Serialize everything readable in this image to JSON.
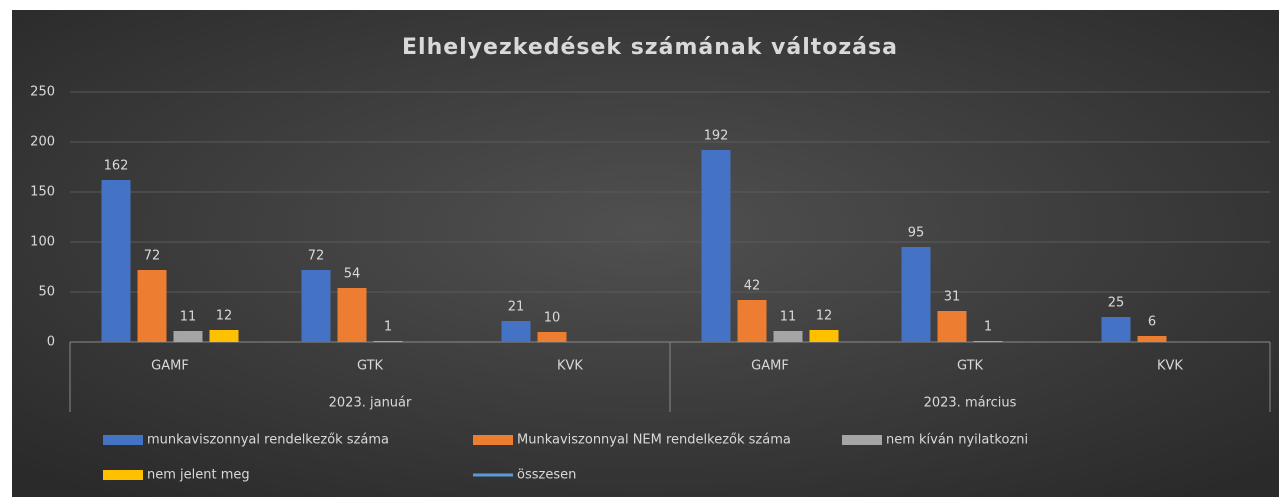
{
  "chart_data": {
    "type": "bar",
    "title": "Elhelyezkedések számának változása",
    "categories": [
      "GAMF",
      "GTK",
      "KVK",
      "GAMF",
      "GTK",
      "KVK"
    ],
    "groups": [
      {
        "label": "2023. január",
        "count": 3
      },
      {
        "label": "2023. március",
        "count": 3
      }
    ],
    "series": [
      {
        "name": "munkaviszonnyal rendelkezők száma",
        "color": "#4472c4",
        "values": [
          162,
          72,
          21,
          192,
          95,
          25
        ]
      },
      {
        "name": "Munkaviszonnyal NEM rendelkezők száma",
        "color": "#ed7d31",
        "values": [
          72,
          54,
          10,
          42,
          31,
          6
        ]
      },
      {
        "name": "nem kíván nyilatkozni",
        "color": "#a5a5a5",
        "values": [
          11,
          1,
          null,
          11,
          1,
          null
        ]
      },
      {
        "name": "nem jelent meg",
        "color": "#ffc000",
        "values": [
          12,
          null,
          null,
          12,
          null,
          null
        ]
      },
      {
        "name": "összesen",
        "color": "#5b9bd5",
        "type": "line",
        "values": [
          null,
          null,
          null,
          null,
          null,
          null
        ]
      }
    ],
    "ylim": [
      0,
      250
    ],
    "yticks": [
      0,
      50,
      100,
      150,
      200,
      250
    ],
    "grid": true,
    "legend": "bottom"
  }
}
